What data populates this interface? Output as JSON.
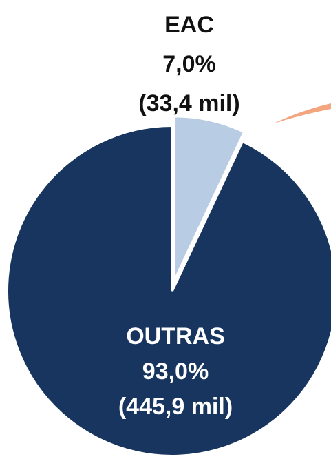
{
  "chart_data": {
    "type": "pie",
    "categories": [
      "EAC",
      "OUTRAS"
    ],
    "values": [
      7.0,
      93.0
    ],
    "value_labels": [
      "7,0%",
      "93,0%"
    ],
    "amounts": [
      33.4,
      445.9
    ],
    "amount_labels": [
      "(33,4 mil)",
      "(445,9 mil)"
    ],
    "colors": [
      "#b8cce4",
      "#17355e"
    ]
  }
}
